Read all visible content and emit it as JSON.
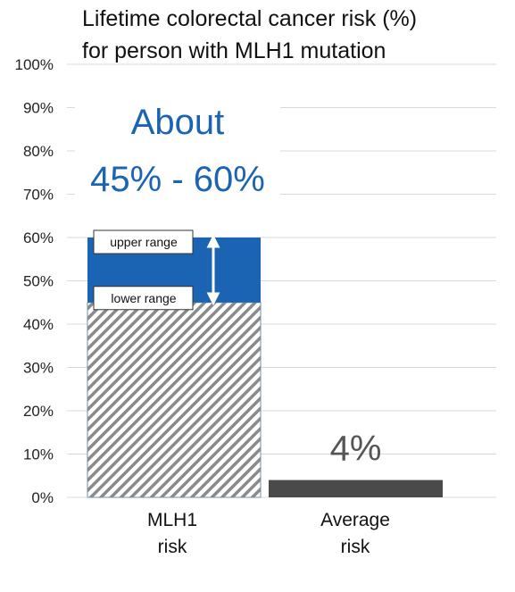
{
  "chart_data": {
    "type": "bar",
    "title_lines": [
      "Lifetime colorectal cancer risk (%)",
      "for person with MLH1 mutation"
    ],
    "xlabel": "",
    "ylabel": "",
    "ylim": [
      0,
      100
    ],
    "y_ticks": [
      0,
      10,
      20,
      30,
      40,
      50,
      60,
      70,
      80,
      90,
      100
    ],
    "y_tick_suffix": "%",
    "grid": true,
    "categories": [
      {
        "label_lines": [
          "MLH1",
          "risk"
        ]
      },
      {
        "label_lines": [
          "Average",
          "risk"
        ]
      }
    ],
    "bars": [
      {
        "category": 0,
        "lower": 45,
        "upper": 60,
        "lower_label": "lower range",
        "upper_label": "upper range",
        "lower_fill": "hatched",
        "upper_color": "#1b63b3"
      },
      {
        "category": 1,
        "value": 4,
        "color": "#4a4a4a",
        "data_label": "4%"
      }
    ],
    "annotation_lines": [
      "About",
      "45% - 60%"
    ],
    "colors": {
      "accent": "#1b63b3",
      "avg_bar": "#4a4a4a",
      "grid": "#d9d9d9",
      "hatch": "#888888"
    }
  }
}
